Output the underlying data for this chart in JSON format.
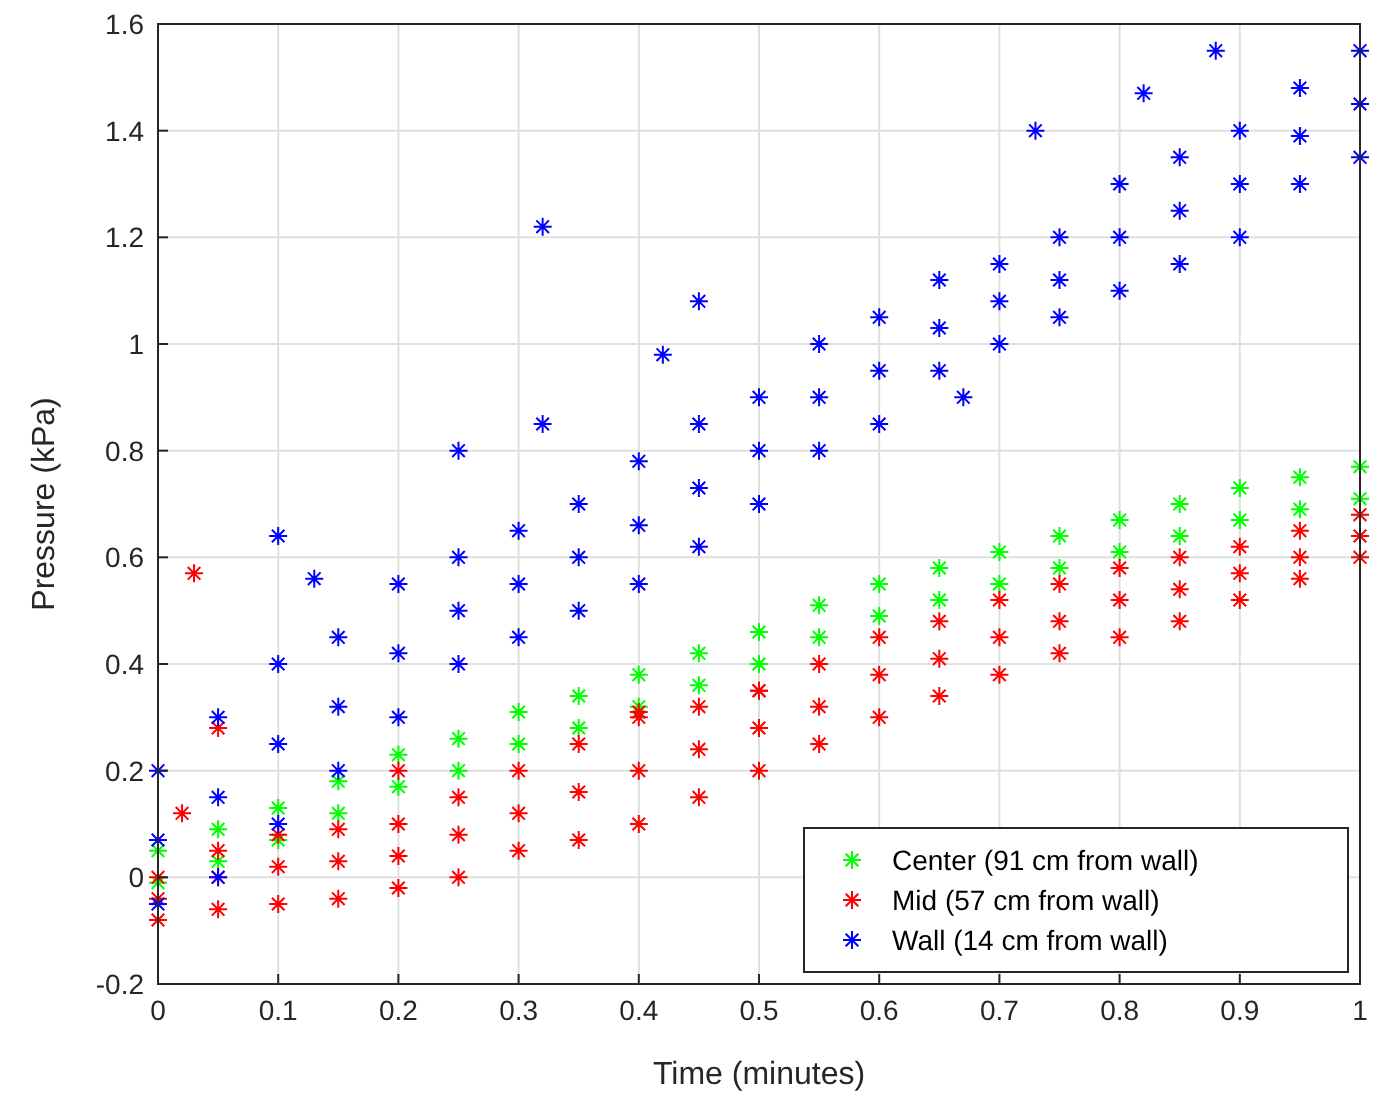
{
  "chart_data": {
    "type": "scatter",
    "xlabel": "Time (minutes)",
    "ylabel": "Pressure (kPa)",
    "xlim": [
      0,
      1
    ],
    "xticks": [
      0,
      0.1,
      0.2,
      0.3,
      0.4,
      0.5,
      0.6,
      0.7,
      0.8,
      0.9,
      1
    ],
    "ylim": [
      -0.2,
      1.6
    ],
    "yticks": [
      -0.2,
      0,
      0.2,
      0.4,
      0.6,
      0.8,
      1,
      1.2,
      1.4,
      1.6
    ],
    "grid": true,
    "legend": "bottom right",
    "marker": "cross",
    "series": [
      {
        "name": "Center (91 cm from wall)",
        "color": "#00ff00",
        "x": [
          0,
          0.05,
          0.1,
          0.15,
          0.2,
          0.25,
          0.3,
          0.35,
          0.4,
          0.45,
          0.5,
          0.55,
          0.6,
          0.65,
          0.7,
          0.75,
          0.8,
          0.85,
          0.9,
          0.95,
          1,
          0,
          0.05,
          0.1,
          0.15,
          0.2,
          0.25,
          0.3,
          0.35,
          0.4,
          0.45,
          0.5,
          0.55,
          0.6,
          0.65,
          0.7,
          0.75,
          0.8,
          0.85,
          0.9,
          0.95,
          1
        ],
        "values": [
          -0.01,
          0.03,
          0.07,
          0.12,
          0.17,
          0.2,
          0.25,
          0.28,
          0.32,
          0.36,
          0.4,
          0.45,
          0.49,
          0.52,
          0.55,
          0.58,
          0.61,
          0.64,
          0.67,
          0.69,
          0.71,
          0.05,
          0.09,
          0.13,
          0.18,
          0.23,
          0.26,
          0.31,
          0.34,
          0.38,
          0.42,
          0.46,
          0.51,
          0.55,
          0.58,
          0.61,
          0.64,
          0.67,
          0.7,
          0.73,
          0.75,
          0.77
        ]
      },
      {
        "name": "Mid (57 cm from wall)",
        "color": "#ff0000",
        "x": [
          0,
          0.05,
          0.1,
          0.15,
          0.2,
          0.25,
          0.3,
          0.35,
          0.4,
          0.45,
          0.5,
          0.55,
          0.6,
          0.65,
          0.7,
          0.75,
          0.8,
          0.85,
          0.9,
          0.95,
          1,
          0,
          0.05,
          0.1,
          0.15,
          0.2,
          0.25,
          0.3,
          0.35,
          0.4,
          0.45,
          0.5,
          0.55,
          0.6,
          0.65,
          0.7,
          0.75,
          0.8,
          0.85,
          0.9,
          0.95,
          1,
          0,
          0.05,
          0.1,
          0.15,
          0.2,
          0.25,
          0.3,
          0.35,
          0.4,
          0.45,
          0.5,
          0.55,
          0.6,
          0.65,
          0.7,
          0.75,
          0.8,
          0.85,
          0.9,
          0.95,
          1,
          0.03,
          0.02,
          0.05,
          0.4,
          0.5,
          0.2
        ],
        "values": [
          -0.08,
          -0.06,
          -0.05,
          -0.04,
          -0.02,
          0,
          0.05,
          0.07,
          0.1,
          0.15,
          0.2,
          0.25,
          0.3,
          0.34,
          0.38,
          0.42,
          0.45,
          0.48,
          0.52,
          0.56,
          0.6,
          -0.04,
          0,
          0.02,
          0.03,
          0.04,
          0.08,
          0.12,
          0.16,
          0.2,
          0.24,
          0.28,
          0.32,
          0.38,
          0.41,
          0.45,
          0.48,
          0.52,
          0.54,
          0.57,
          0.6,
          0.64,
          0,
          0.05,
          0.08,
          0.09,
          0.1,
          0.15,
          0.2,
          0.25,
          0.3,
          0.32,
          0.35,
          0.4,
          0.45,
          0.48,
          0.52,
          0.55,
          0.58,
          0.6,
          0.62,
          0.65,
          0.68,
          0.57,
          0.12,
          0.28,
          0.31,
          0.35,
          0.2
        ]
      },
      {
        "name": "Wall (14 cm from wall)",
        "color": "#0000ff",
        "x": [
          0,
          0.05,
          0.1,
          0.15,
          0.2,
          0.25,
          0.3,
          0.35,
          0.4,
          0.45,
          0.5,
          0.55,
          0.6,
          0.65,
          0.7,
          0.75,
          0.8,
          0.85,
          0.9,
          0.95,
          1,
          0,
          0.05,
          0.1,
          0.15,
          0.2,
          0.25,
          0.3,
          0.35,
          0.4,
          0.45,
          0.5,
          0.55,
          0.6,
          0.65,
          0.7,
          0.75,
          0.8,
          0.85,
          0.9,
          0.95,
          1,
          0,
          0.05,
          0.1,
          0.15,
          0.2,
          0.25,
          0.3,
          0.35,
          0.4,
          0.45,
          0.5,
          0.55,
          0.6,
          0.65,
          0.7,
          0.75,
          0.8,
          0.85,
          0.9,
          0.95,
          1,
          0.32,
          0.88,
          0.73,
          0.82,
          0.1,
          0.13,
          0.25,
          0.32,
          0.45,
          0.42,
          0.67
        ],
        "values": [
          -0.05,
          0,
          0.1,
          0.2,
          0.3,
          0.4,
          0.45,
          0.5,
          0.55,
          0.62,
          0.7,
          0.8,
          0.85,
          0.95,
          1,
          1.05,
          1.1,
          1.15,
          1.2,
          1.3,
          1.35,
          0.07,
          0.15,
          0.25,
          0.32,
          0.42,
          0.5,
          0.55,
          0.6,
          0.66,
          0.73,
          0.8,
          0.9,
          0.95,
          1.03,
          1.08,
          1.12,
          1.2,
          1.25,
          1.3,
          1.39,
          1.45,
          0.2,
          0.3,
          0.4,
          0.45,
          0.55,
          0.6,
          0.65,
          0.7,
          0.78,
          0.85,
          0.9,
          1,
          1.05,
          1.12,
          1.15,
          1.2,
          1.3,
          1.35,
          1.4,
          1.48,
          1.55,
          1.22,
          1.55,
          1.4,
          1.47,
          0.64,
          0.56,
          0.8,
          0.85,
          1.08,
          0.98,
          0.9
        ]
      }
    ]
  }
}
